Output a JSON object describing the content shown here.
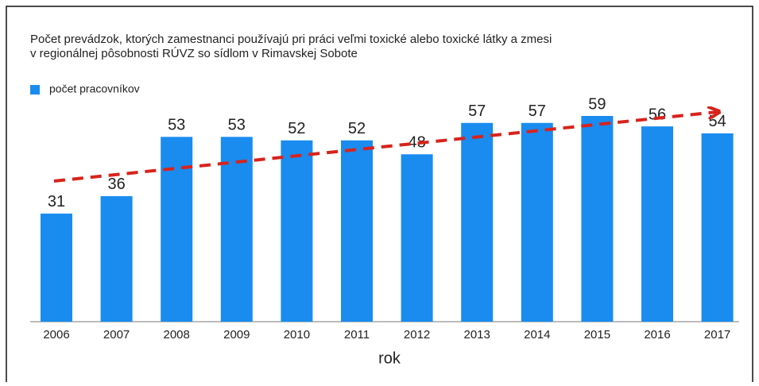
{
  "chart_data": {
    "type": "bar",
    "title": [
      "Počet prevádzok, ktorých zamestnanci používajú pri práci veľmi toxické alebo toxické látky a zmesi",
      "v regionálnej pôsobnosti RÚVZ so sídlom v Rimavskej Sobote"
    ],
    "xlabel": "rok",
    "categories": [
      "2006",
      "2007",
      "2008",
      "2009",
      "2010",
      "2011",
      "2012",
      "2013",
      "2014",
      "2015",
      "2016",
      "2017"
    ],
    "series": [
      {
        "name": "počet pracovníkov",
        "color": "#1a8cf0",
        "values": [
          31,
          36,
          53,
          53,
          52,
          52,
          48,
          57,
          57,
          59,
          56,
          54
        ]
      }
    ],
    "legend": "top-left"
  }
}
